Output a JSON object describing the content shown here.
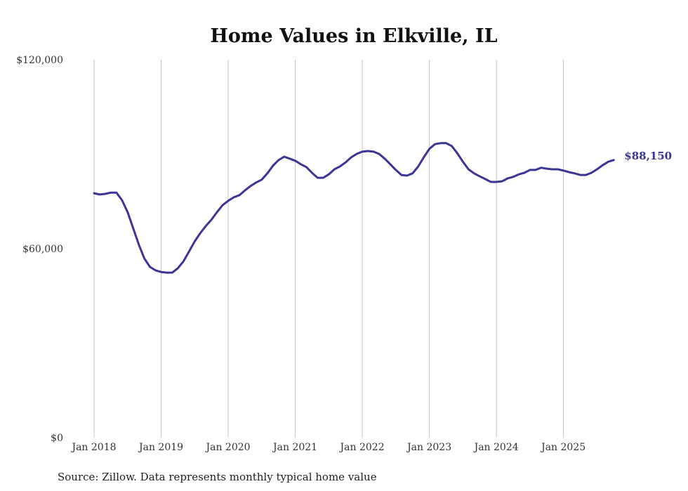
{
  "chart_data": {
    "type": "line",
    "title": "Home Values in Elkville, IL",
    "xlabel": "",
    "ylabel": "",
    "source": "Source: Zillow. Data represents monthly typical home value",
    "ylim": [
      0,
      120000
    ],
    "yticks": [
      0,
      60000,
      120000
    ],
    "ytick_labels": [
      "$0",
      "$60,000",
      "$120,000"
    ],
    "xtick_labels": [
      "Jan 2018",
      "Jan 2019",
      "Jan 2020",
      "Jan 2021",
      "Jan 2022",
      "Jan 2023",
      "Jan 2024",
      "Jan 2025"
    ],
    "x_start": "2018-01",
    "x_frequency": "monthly",
    "grid": "vertical",
    "line_color": "#3b3596",
    "end_label": "$88,150",
    "series": [
      {
        "name": "Typical home value",
        "values": [
          77600,
          77200,
          77400,
          77800,
          77800,
          75400,
          71600,
          66500,
          61300,
          56900,
          54200,
          53100,
          52600,
          52400,
          52400,
          53800,
          56000,
          59100,
          62300,
          64900,
          67200,
          69200,
          71600,
          73800,
          75200,
          76300,
          77000,
          78500,
          79900,
          81000,
          81900,
          83900,
          86300,
          88100,
          89200,
          88600,
          87900,
          86800,
          85900,
          84100,
          82500,
          82500,
          83600,
          85200,
          86100,
          87400,
          89000,
          90100,
          90800,
          91000,
          90800,
          90100,
          88600,
          86800,
          85000,
          83400,
          83200,
          83900,
          86100,
          89000,
          91700,
          93200,
          93500,
          93500,
          92600,
          90300,
          87600,
          85200,
          83900,
          83000,
          82100,
          81200,
          81200,
          81400,
          82300,
          82800,
          83600,
          84100,
          85000,
          85000,
          85700,
          85400,
          85200,
          85200,
          84800,
          84300,
          83900,
          83400,
          83400,
          84100,
          85200,
          86500,
          87600,
          88150
        ]
      }
    ]
  }
}
